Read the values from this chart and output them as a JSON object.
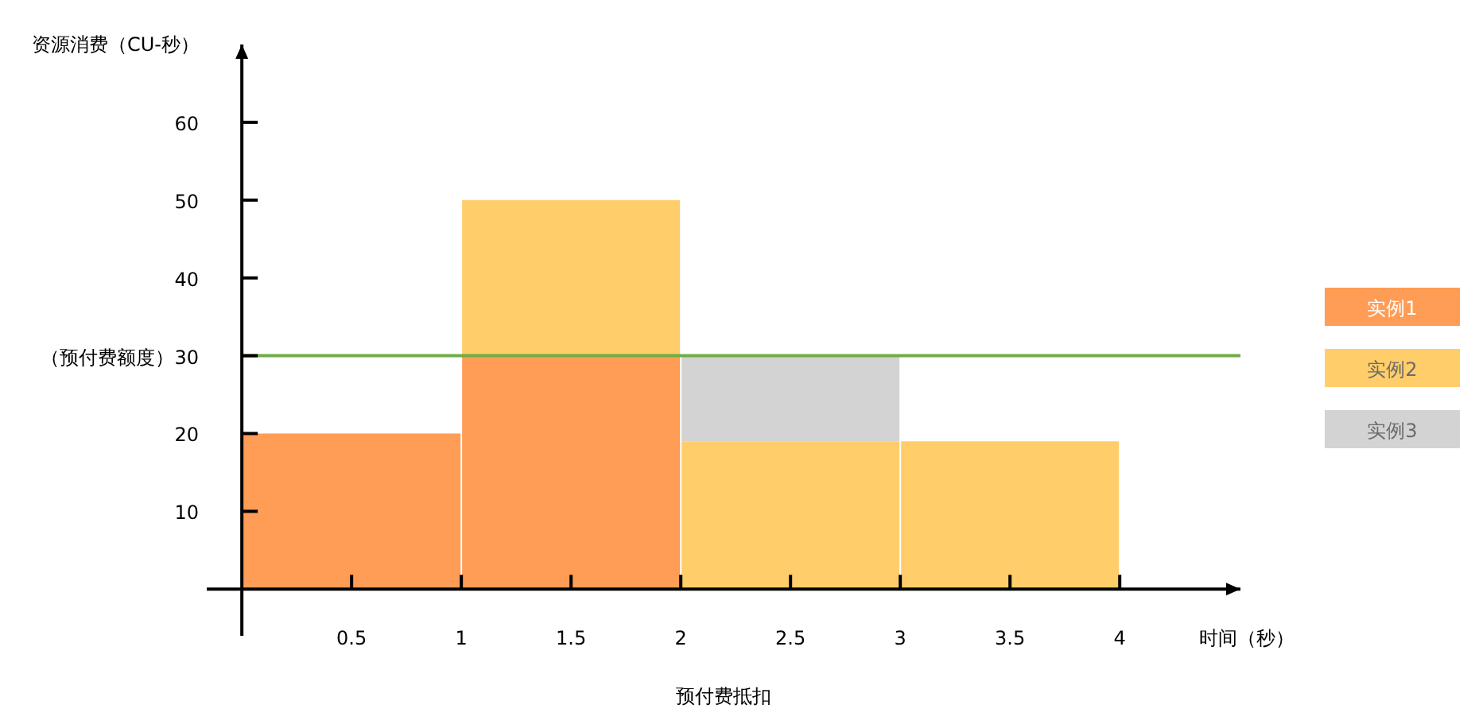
{
  "chart_data": {
    "type": "bar",
    "stacked": true,
    "x": [
      0.5,
      1.5,
      2.5,
      3.5
    ],
    "series": [
      {
        "name": "实例1",
        "color": "#ff9c55",
        "values": [
          20,
          30,
          null,
          null
        ]
      },
      {
        "name": "实例2",
        "color": "#ffcd69",
        "values": [
          null,
          20,
          19,
          19
        ]
      },
      {
        "name": "实例3",
        "color": "#d3d3d3",
        "values": [
          null,
          null,
          11,
          null
        ]
      }
    ],
    "xlim": [
      -0.16,
      4.55
    ],
    "ylim": [
      -6,
      70
    ],
    "xticks": [
      0.5,
      1,
      1.5,
      2,
      2.5,
      3,
      3.5,
      4
    ],
    "yticks": [
      10,
      20,
      {
        "value": 30,
        "label": "（预付费额度）30"
      },
      40,
      50,
      60
    ],
    "xlabel": "时间（秒）",
    "ylabel": "资源消费（CU-秒）",
    "annotations": [
      "预付费抵扣"
    ],
    "ref_lines": [
      {
        "axis": "y",
        "value": 30,
        "color": "#70ad47"
      }
    ],
    "legend": "right",
    "grid": false
  }
}
